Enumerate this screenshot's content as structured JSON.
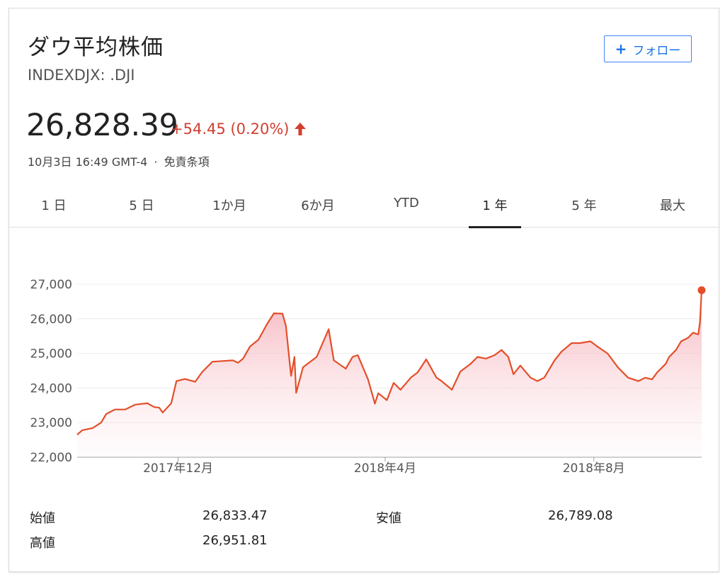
{
  "header": {
    "title": "ダウ平均株価",
    "ticker": "INDEXDJX: .DJI",
    "follow_label": "フォロー"
  },
  "quote": {
    "price": "26,828.39",
    "change": "+54.45 (0.20%)",
    "direction": "up",
    "timestamp": "10月3日 16:49 GMT-4",
    "separator": "·",
    "disclaimer": "免責条項"
  },
  "colors": {
    "up": "#d23f31",
    "line": "#e34f2a",
    "accent": "#4285f4"
  },
  "tabs": [
    {
      "label": "1 日",
      "active": false
    },
    {
      "label": "5 日",
      "active": false
    },
    {
      "label": "1か月",
      "active": false
    },
    {
      "label": "6か月",
      "active": false
    },
    {
      "label": "YTD",
      "active": false
    },
    {
      "label": "1 年",
      "active": true
    },
    {
      "label": "5 年",
      "active": false
    },
    {
      "label": "最大",
      "active": false
    }
  ],
  "chart_data": {
    "type": "area",
    "x_start": "2017-10-03",
    "x_end": "2018-10-03",
    "ylim": [
      22000,
      27000
    ],
    "y_ticks": [
      "27,000",
      "26,000",
      "25,000",
      "24,000",
      "23,000",
      "22,000"
    ],
    "y_tick_values": [
      27000,
      26000,
      25000,
      24000,
      23000,
      22000
    ],
    "x_ticks": [
      "2017年12月",
      "2018年4月",
      "2018年8月"
    ],
    "x_tick_dates": [
      "2017-12-01",
      "2018-04-01",
      "2018-08-01"
    ],
    "series": [
      {
        "points": [
          [
            "2017-10-03",
            22650
          ],
          [
            "2017-10-06",
            22780
          ],
          [
            "2017-10-12",
            22840
          ],
          [
            "2017-10-17",
            23000
          ],
          [
            "2017-10-20",
            23250
          ],
          [
            "2017-10-25",
            23380
          ],
          [
            "2017-10-31",
            23380
          ],
          [
            "2017-11-06",
            23520
          ],
          [
            "2017-11-13",
            23560
          ],
          [
            "2017-11-17",
            23450
          ],
          [
            "2017-11-20",
            23430
          ],
          [
            "2017-11-22",
            23290
          ],
          [
            "2017-11-27",
            23560
          ],
          [
            "2017-11-30",
            24200
          ],
          [
            "2017-12-05",
            24260
          ],
          [
            "2017-12-11",
            24180
          ],
          [
            "2017-12-15",
            24460
          ],
          [
            "2017-12-21",
            24760
          ],
          [
            "2017-12-27",
            24780
          ],
          [
            "2018-01-02",
            24800
          ],
          [
            "2018-01-05",
            24730
          ],
          [
            "2018-01-08",
            24850
          ],
          [
            "2018-01-12",
            25200
          ],
          [
            "2018-01-17",
            25400
          ],
          [
            "2018-01-22",
            25850
          ],
          [
            "2018-01-26",
            26160
          ],
          [
            "2018-01-31",
            26150
          ],
          [
            "2018-02-02",
            25800
          ],
          [
            "2018-02-05",
            24350
          ],
          [
            "2018-02-07",
            24900
          ],
          [
            "2018-02-08",
            23860
          ],
          [
            "2018-02-12",
            24600
          ],
          [
            "2018-02-20",
            24900
          ],
          [
            "2018-02-27",
            25700
          ],
          [
            "2018-03-02",
            24800
          ],
          [
            "2018-03-09",
            24560
          ],
          [
            "2018-03-13",
            24900
          ],
          [
            "2018-03-16",
            24950
          ],
          [
            "2018-03-22",
            24250
          ],
          [
            "2018-03-26",
            23550
          ],
          [
            "2018-03-28",
            23850
          ],
          [
            "2018-04-02",
            23650
          ],
          [
            "2018-04-06",
            24150
          ],
          [
            "2018-04-10",
            23950
          ],
          [
            "2018-04-16",
            24300
          ],
          [
            "2018-04-20",
            24450
          ],
          [
            "2018-04-25",
            24830
          ],
          [
            "2018-05-01",
            24300
          ],
          [
            "2018-05-04",
            24200
          ],
          [
            "2018-05-10",
            23950
          ],
          [
            "2018-05-15",
            24480
          ],
          [
            "2018-05-21",
            24700
          ],
          [
            "2018-05-25",
            24900
          ],
          [
            "2018-05-30",
            24850
          ],
          [
            "2018-06-04",
            24950
          ],
          [
            "2018-06-08",
            25100
          ],
          [
            "2018-06-12",
            24900
          ],
          [
            "2018-06-15",
            24400
          ],
          [
            "2018-06-19",
            24650
          ],
          [
            "2018-06-25",
            24300
          ],
          [
            "2018-06-29",
            24200
          ],
          [
            "2018-07-03",
            24300
          ],
          [
            "2018-07-09",
            24800
          ],
          [
            "2018-07-13",
            25050
          ],
          [
            "2018-07-19",
            25300
          ],
          [
            "2018-07-24",
            25300
          ],
          [
            "2018-07-30",
            25350
          ],
          [
            "2018-08-03",
            25200
          ],
          [
            "2018-08-09",
            25000
          ],
          [
            "2018-08-15",
            24600
          ],
          [
            "2018-08-21",
            24300
          ],
          [
            "2018-08-27",
            24200
          ],
          [
            "2018-08-31",
            24300
          ],
          [
            "2018-09-04",
            24250
          ],
          [
            "2018-09-07",
            24450
          ],
          [
            "2018-09-12",
            24700
          ],
          [
            "2018-09-14",
            24900
          ],
          [
            "2018-09-18",
            25100
          ],
          [
            "2018-09-21",
            25350
          ],
          [
            "2018-09-25",
            25450
          ],
          [
            "2018-09-28",
            25600
          ],
          [
            "2018-10-01",
            25550
          ],
          [
            "2018-10-02",
            25900
          ],
          [
            "2018-10-03",
            26828
          ]
        ]
      }
    ]
  },
  "stats": [
    {
      "label": "始値",
      "value": "26,833.47"
    },
    {
      "label": "高値",
      "value": "26,951.81"
    },
    {
      "label": "安値",
      "value": "26,789.08"
    }
  ]
}
